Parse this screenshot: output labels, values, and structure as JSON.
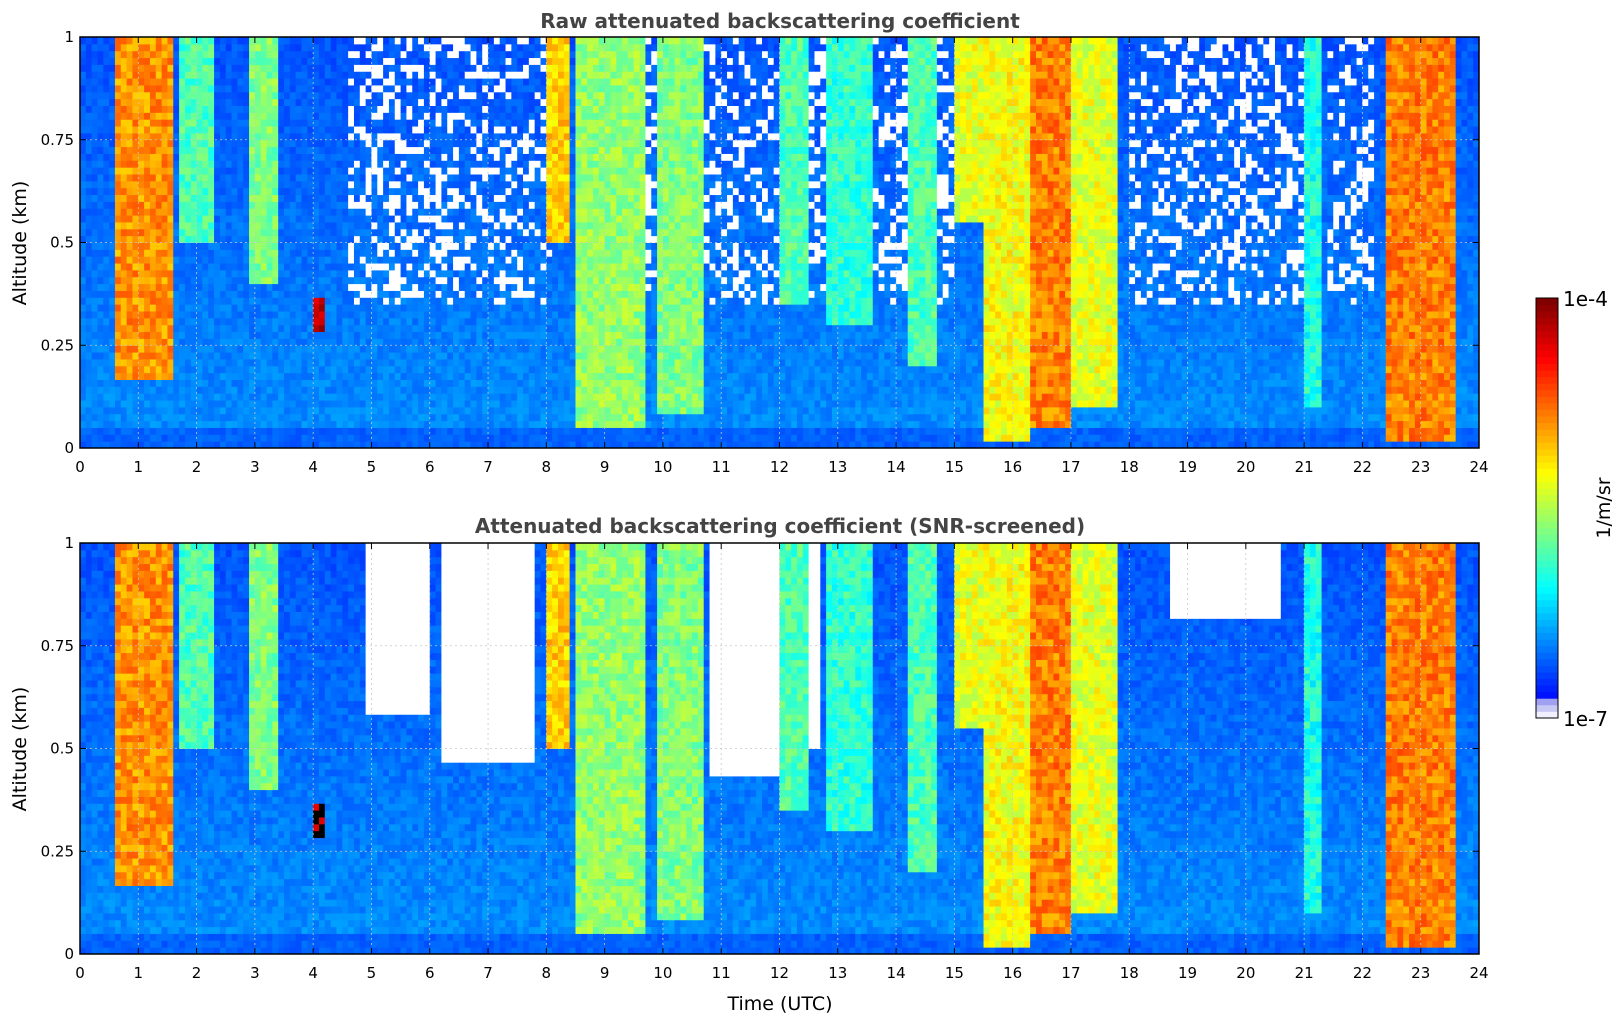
{
  "chart_data": [
    {
      "type": "heatmap",
      "title": "Raw attenuated backscattering coefficient",
      "xlabel": "",
      "ylabel": "Altitude (km)",
      "xlim": [
        0,
        24
      ],
      "ylim": [
        0,
        1
      ],
      "x_ticks": [
        "0",
        "1",
        "2",
        "3",
        "4",
        "5",
        "6",
        "7",
        "8",
        "9",
        "10",
        "11",
        "12",
        "13",
        "14",
        "15",
        "16",
        "17",
        "18",
        "19",
        "20",
        "21",
        "22",
        "23",
        "24"
      ],
      "y_ticks": [
        "0",
        "0.25",
        "0.5",
        "0.75",
        "1"
      ],
      "grid": true,
      "colormap": "jet",
      "color_scale": "log",
      "clim": [
        1e-07,
        0.0001
      ],
      "screened": false,
      "noise_regions": [
        [
          4.6,
          8.2
        ],
        [
          9.6,
          15.0
        ],
        [
          18.0,
          21.0
        ],
        [
          21.4,
          22.2
        ]
      ],
      "cloud_columns": [
        {
          "x0": 0.65,
          "x1": 1.65,
          "base": 0.17,
          "level": 0.73
        },
        {
          "x0": 1.75,
          "x1": 2.3,
          "base": 0.5,
          "level": 0.45
        },
        {
          "x0": 2.9,
          "x1": 3.35,
          "base": 0.4,
          "level": 0.5
        },
        {
          "x0": 4.05,
          "x1": 4.18,
          "base": 0.29,
          "level": 0.95,
          "top": 0.36
        },
        {
          "x0": 8.0,
          "x1": 8.45,
          "base": 0.5,
          "level": 0.67
        },
        {
          "x0": 8.5,
          "x1": 9.7,
          "base": 0.05,
          "level": 0.52
        },
        {
          "x0": 9.9,
          "x1": 10.7,
          "base": 0.08,
          "level": 0.5
        },
        {
          "x0": 12.0,
          "x1": 12.5,
          "base": 0.35,
          "level": 0.45
        },
        {
          "x0": 12.8,
          "x1": 13.6,
          "base": 0.3,
          "level": 0.42
        },
        {
          "x0": 14.2,
          "x1": 14.7,
          "base": 0.2,
          "level": 0.45
        },
        {
          "x0": 15.0,
          "x1": 15.6,
          "base": 0.55,
          "level": 0.6
        },
        {
          "x0": 15.5,
          "x1": 16.25,
          "base": 0.02,
          "level": 0.62
        },
        {
          "x0": 16.3,
          "x1": 17.0,
          "base": 0.05,
          "level": 0.75
        },
        {
          "x0": 17.0,
          "x1": 17.8,
          "base": 0.1,
          "level": 0.6
        },
        {
          "x0": 21.0,
          "x1": 21.3,
          "base": 0.1,
          "level": 0.4
        },
        {
          "x0": 22.4,
          "x1": 23.6,
          "base": 0.02,
          "level": 0.75
        }
      ]
    },
    {
      "type": "heatmap",
      "title": "Attenuated backscattering coefficient (SNR-screened)",
      "xlabel": "Time (UTC)",
      "ylabel": "Altitude (km)",
      "xlim": [
        0,
        24
      ],
      "ylim": [
        0,
        1
      ],
      "x_ticks": [
        "0",
        "1",
        "2",
        "3",
        "4",
        "5",
        "6",
        "7",
        "8",
        "9",
        "10",
        "11",
        "12",
        "13",
        "14",
        "15",
        "16",
        "17",
        "18",
        "19",
        "20",
        "21",
        "22",
        "23",
        "24"
      ],
      "y_ticks": [
        "0",
        "0.25",
        "0.5",
        "0.75",
        "1"
      ],
      "grid": true,
      "colormap": "jet",
      "color_scale": "log",
      "clim": [
        1e-07,
        0.0001
      ],
      "screened": true,
      "masked_regions": [
        {
          "x0": 4.9,
          "x1": 6.0,
          "ybot": 0.58
        },
        {
          "x0": 6.2,
          "x1": 7.8,
          "ybot": 0.46
        },
        {
          "x0": 10.8,
          "x1": 12.0,
          "ybot": 0.44
        },
        {
          "x0": 12.2,
          "x1": 12.7,
          "ybot": 0.5
        },
        {
          "x0": 18.7,
          "x1": 20.6,
          "ybot": 0.82
        }
      ]
    }
  ],
  "colorbar": {
    "label": "1/m/sr",
    "max_label": "1e-4",
    "min_label": "1e-7"
  }
}
